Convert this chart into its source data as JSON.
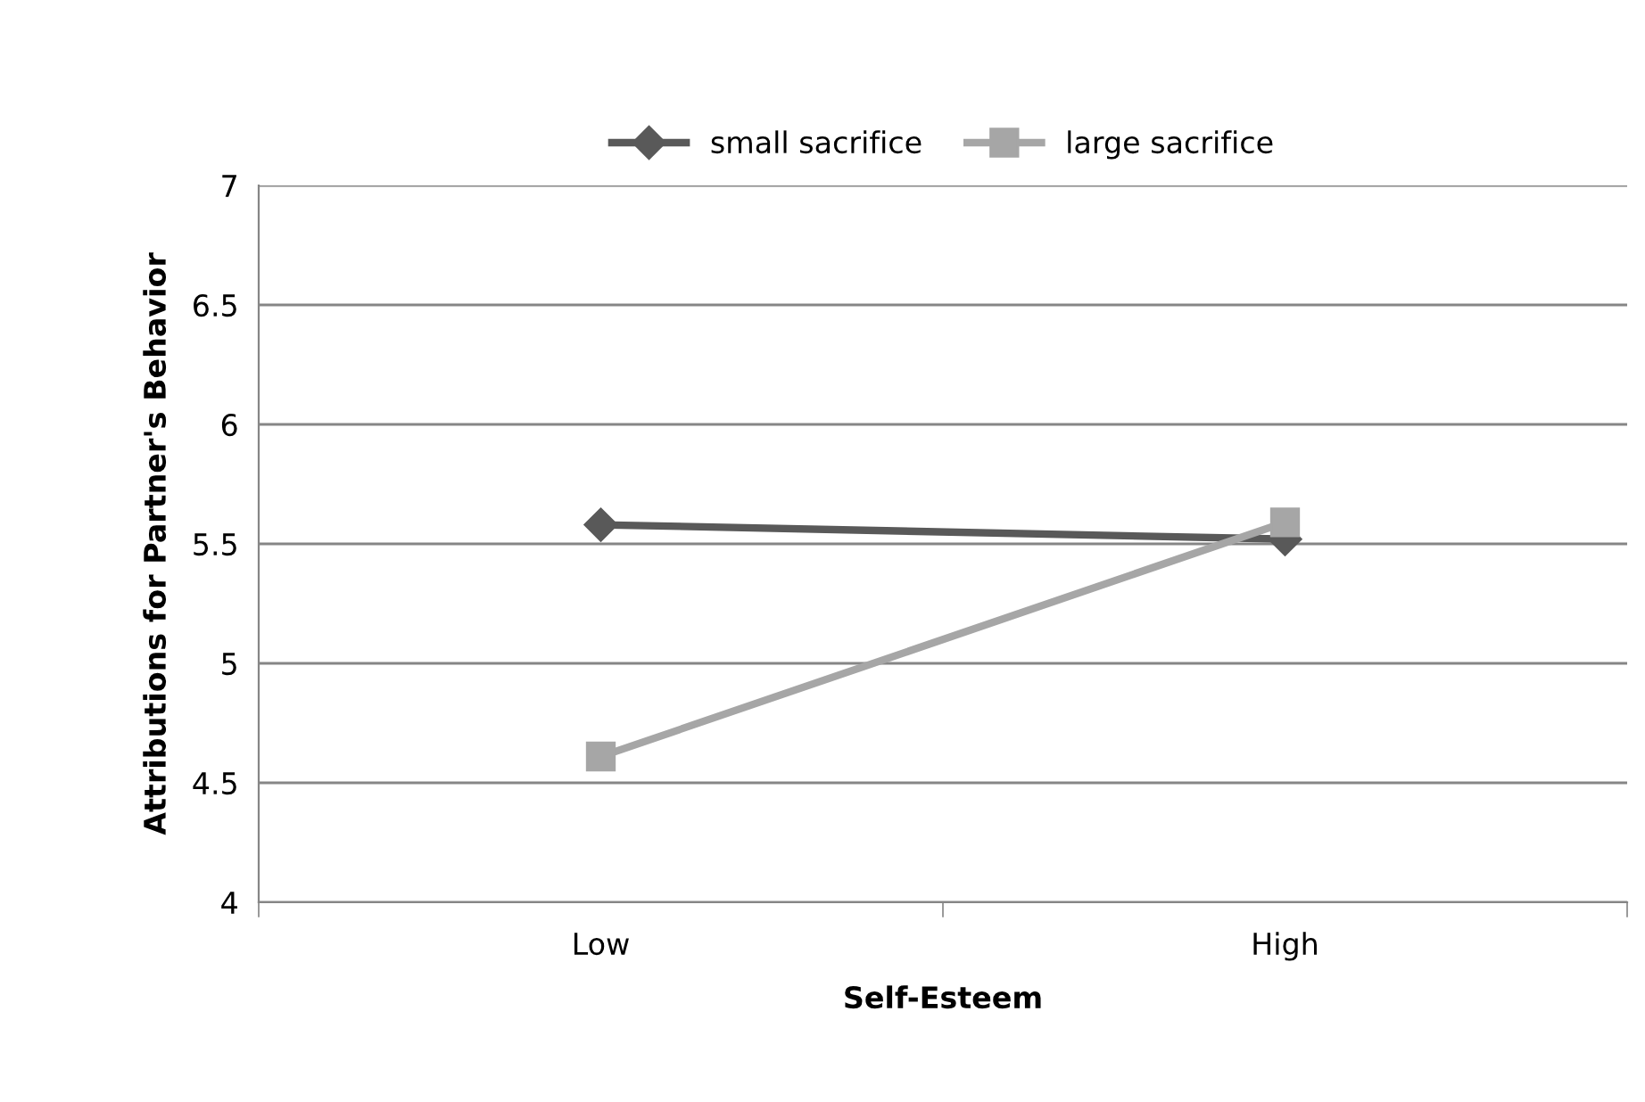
{
  "chart_data": {
    "type": "line",
    "xlabel": "Self-Esteem",
    "ylabel": "Attributions for Partner's Behavior",
    "categories": [
      "Low",
      "High"
    ],
    "series": [
      {
        "name": "small sacrifice",
        "color": "#595959",
        "marker": "diamond",
        "values": [
          5.58,
          5.52
        ]
      },
      {
        "name": "large sacrifice",
        "color": "#a6a6a6",
        "marker": "square",
        "values": [
          4.61,
          5.59
        ]
      }
    ],
    "ylim": [
      4,
      7
    ],
    "yticks": [
      4,
      4.5,
      5,
      5.5,
      6,
      6.5,
      7
    ],
    "grid": "y",
    "legend": "top",
    "line_style": "solid"
  }
}
